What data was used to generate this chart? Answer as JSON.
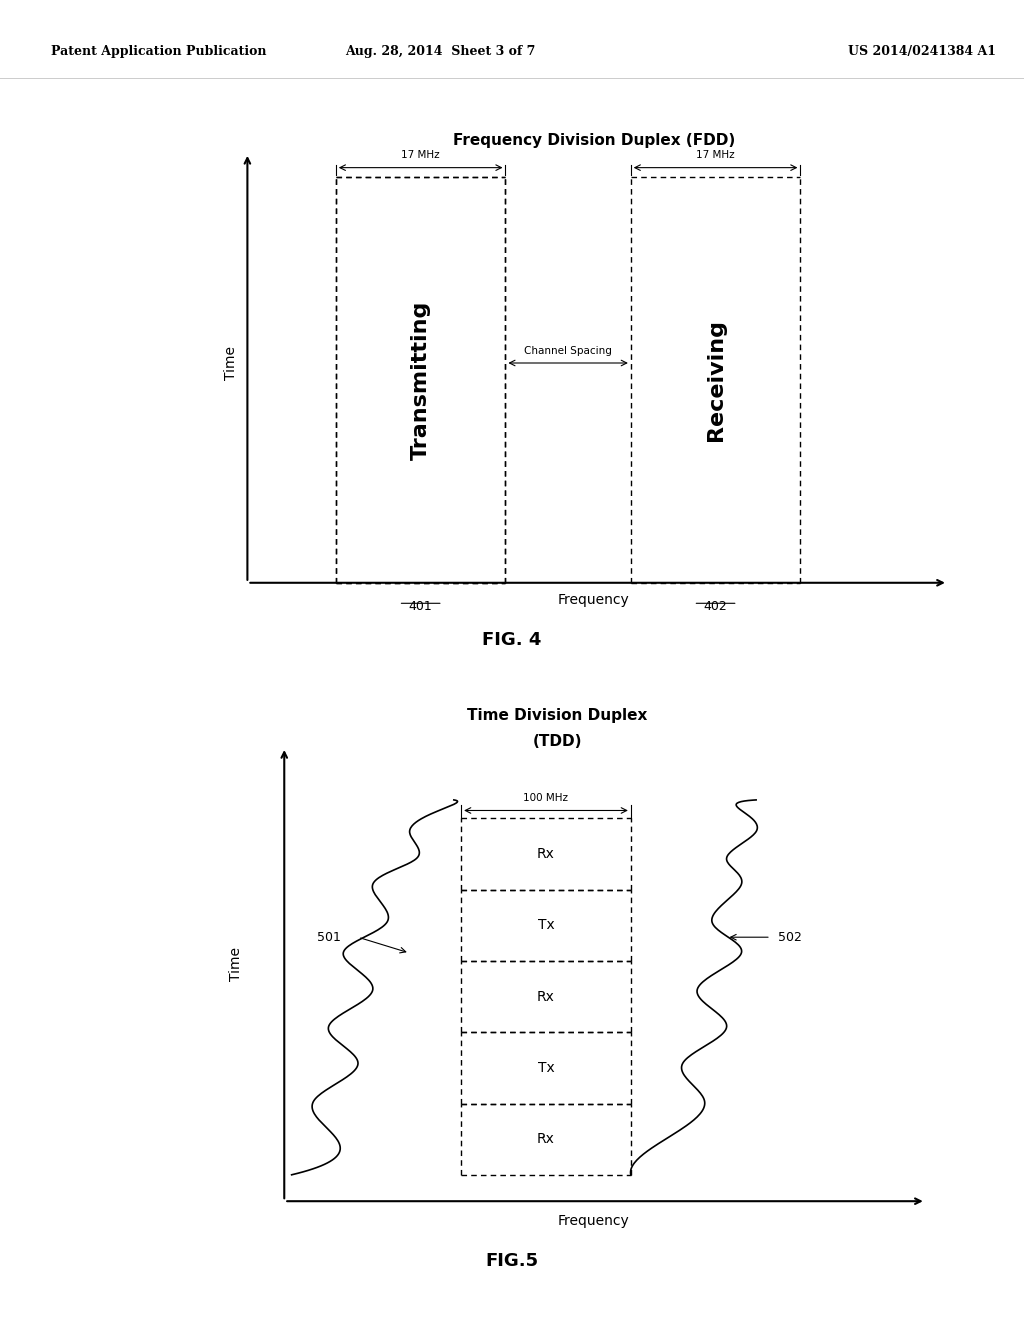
{
  "bg_color": "#ffffff",
  "header_left": "Patent Application Publication",
  "header_mid": "Aug. 28, 2014  Sheet 3 of 7",
  "header_right": "US 2014/0241384 A1",
  "fig4_title": "Frequency Division Duplex (FDD)",
  "fig4_xlabel": "Frequency",
  "fig4_ylabel": "Time",
  "fig4_label1": "Transmitting",
  "fig4_label2": "Receiving",
  "fig4_17mhz_left": "17 MHz",
  "fig4_17mhz_right": "17 MHz",
  "fig4_channel_spacing": "Channel Spacing",
  "fig4_ref1": "401",
  "fig4_ref2": "402",
  "fig4_caption": "FIG. 4",
  "fig5_title1": "Time Division Duplex",
  "fig5_title2": "(TDD)",
  "fig5_xlabel": "Frequency",
  "fig5_ylabel": "Time",
  "fig5_100mhz": "100 MHz",
  "fig5_ref1": "501",
  "fig5_ref2": "502",
  "fig5_labels": [
    "Rx",
    "Tx",
    "Rx",
    "Tx",
    "Rx"
  ],
  "fig5_caption": "FIG.5"
}
